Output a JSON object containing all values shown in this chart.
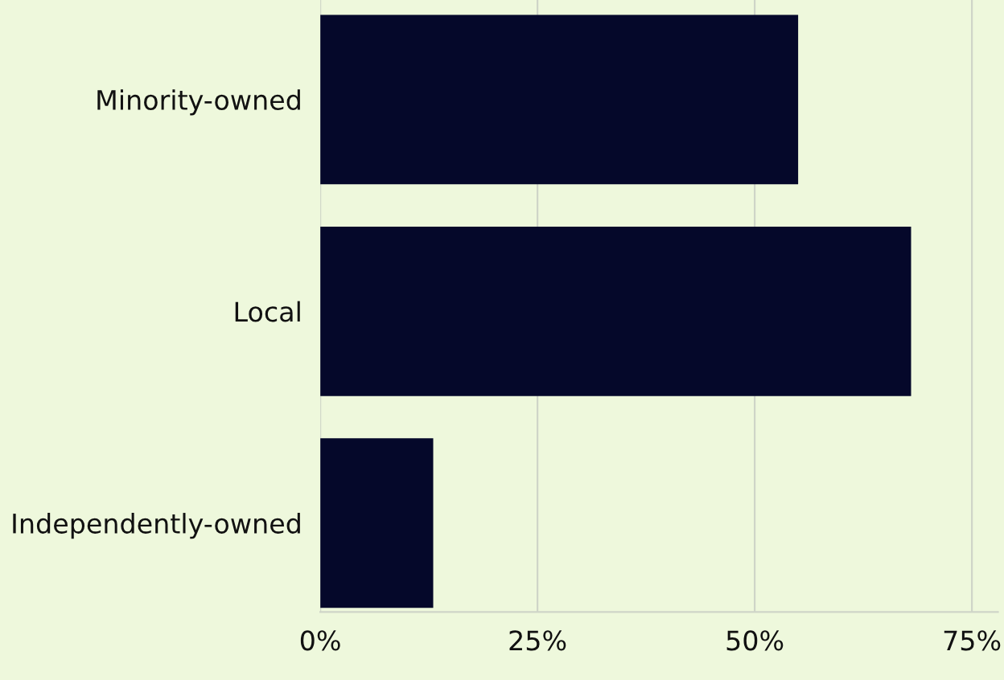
{
  "chart_data": {
    "type": "bar",
    "orientation": "horizontal",
    "categories": [
      "Minority-owned",
      "Local",
      "Independently-owned"
    ],
    "values": [
      55,
      68,
      13
    ],
    "color": "#05082a",
    "xlim": [
      0,
      78
    ],
    "xticks": [
      {
        "value": 0,
        "label": "0%"
      },
      {
        "value": 25,
        "label": "25%"
      },
      {
        "value": 50,
        "label": "50%"
      },
      {
        "value": 75,
        "label": "75%"
      }
    ],
    "grid": "x"
  }
}
